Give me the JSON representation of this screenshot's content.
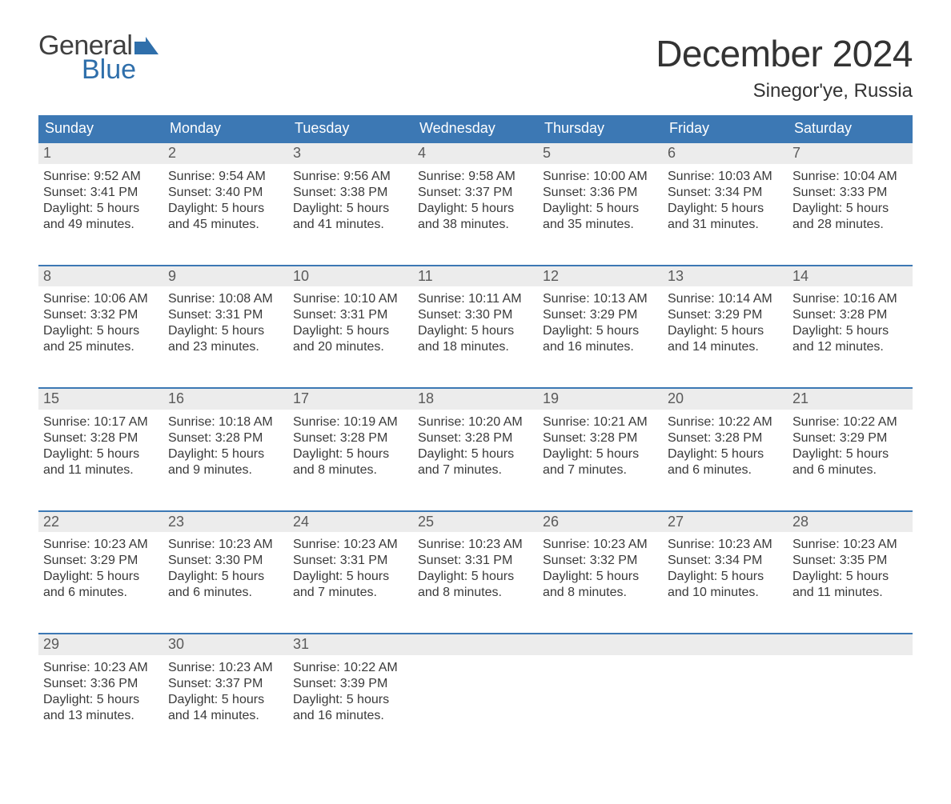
{
  "brand": {
    "line1": "General",
    "line2": "Blue",
    "flag_color": "#2f6fab"
  },
  "title": "December 2024",
  "location": "Sinegor'ye, Russia",
  "colors": {
    "header_bg": "#3c78b4",
    "header_text": "#ffffff",
    "daynum_bg": "#ececec",
    "row_border": "#3c78b4",
    "body_text": "#3a3a3a"
  },
  "columns": [
    "Sunday",
    "Monday",
    "Tuesday",
    "Wednesday",
    "Thursday",
    "Friday",
    "Saturday"
  ],
  "weeks": [
    [
      {
        "n": "1",
        "sr": "9:52 AM",
        "ss": "3:41 PM",
        "dl": "5 hours and 49 minutes."
      },
      {
        "n": "2",
        "sr": "9:54 AM",
        "ss": "3:40 PM",
        "dl": "5 hours and 45 minutes."
      },
      {
        "n": "3",
        "sr": "9:56 AM",
        "ss": "3:38 PM",
        "dl": "5 hours and 41 minutes."
      },
      {
        "n": "4",
        "sr": "9:58 AM",
        "ss": "3:37 PM",
        "dl": "5 hours and 38 minutes."
      },
      {
        "n": "5",
        "sr": "10:00 AM",
        "ss": "3:36 PM",
        "dl": "5 hours and 35 minutes."
      },
      {
        "n": "6",
        "sr": "10:03 AM",
        "ss": "3:34 PM",
        "dl": "5 hours and 31 minutes."
      },
      {
        "n": "7",
        "sr": "10:04 AM",
        "ss": "3:33 PM",
        "dl": "5 hours and 28 minutes."
      }
    ],
    [
      {
        "n": "8",
        "sr": "10:06 AM",
        "ss": "3:32 PM",
        "dl": "5 hours and 25 minutes."
      },
      {
        "n": "9",
        "sr": "10:08 AM",
        "ss": "3:31 PM",
        "dl": "5 hours and 23 minutes."
      },
      {
        "n": "10",
        "sr": "10:10 AM",
        "ss": "3:31 PM",
        "dl": "5 hours and 20 minutes."
      },
      {
        "n": "11",
        "sr": "10:11 AM",
        "ss": "3:30 PM",
        "dl": "5 hours and 18 minutes."
      },
      {
        "n": "12",
        "sr": "10:13 AM",
        "ss": "3:29 PM",
        "dl": "5 hours and 16 minutes."
      },
      {
        "n": "13",
        "sr": "10:14 AM",
        "ss": "3:29 PM",
        "dl": "5 hours and 14 minutes."
      },
      {
        "n": "14",
        "sr": "10:16 AM",
        "ss": "3:28 PM",
        "dl": "5 hours and 12 minutes."
      }
    ],
    [
      {
        "n": "15",
        "sr": "10:17 AM",
        "ss": "3:28 PM",
        "dl": "5 hours and 11 minutes."
      },
      {
        "n": "16",
        "sr": "10:18 AM",
        "ss": "3:28 PM",
        "dl": "5 hours and 9 minutes."
      },
      {
        "n": "17",
        "sr": "10:19 AM",
        "ss": "3:28 PM",
        "dl": "5 hours and 8 minutes."
      },
      {
        "n": "18",
        "sr": "10:20 AM",
        "ss": "3:28 PM",
        "dl": "5 hours and 7 minutes."
      },
      {
        "n": "19",
        "sr": "10:21 AM",
        "ss": "3:28 PM",
        "dl": "5 hours and 7 minutes."
      },
      {
        "n": "20",
        "sr": "10:22 AM",
        "ss": "3:28 PM",
        "dl": "5 hours and 6 minutes."
      },
      {
        "n": "21",
        "sr": "10:22 AM",
        "ss": "3:29 PM",
        "dl": "5 hours and 6 minutes."
      }
    ],
    [
      {
        "n": "22",
        "sr": "10:23 AM",
        "ss": "3:29 PM",
        "dl": "5 hours and 6 minutes."
      },
      {
        "n": "23",
        "sr": "10:23 AM",
        "ss": "3:30 PM",
        "dl": "5 hours and 6 minutes."
      },
      {
        "n": "24",
        "sr": "10:23 AM",
        "ss": "3:31 PM",
        "dl": "5 hours and 7 minutes."
      },
      {
        "n": "25",
        "sr": "10:23 AM",
        "ss": "3:31 PM",
        "dl": "5 hours and 8 minutes."
      },
      {
        "n": "26",
        "sr": "10:23 AM",
        "ss": "3:32 PM",
        "dl": "5 hours and 8 minutes."
      },
      {
        "n": "27",
        "sr": "10:23 AM",
        "ss": "3:34 PM",
        "dl": "5 hours and 10 minutes."
      },
      {
        "n": "28",
        "sr": "10:23 AM",
        "ss": "3:35 PM",
        "dl": "5 hours and 11 minutes."
      }
    ],
    [
      {
        "n": "29",
        "sr": "10:23 AM",
        "ss": "3:36 PM",
        "dl": "5 hours and 13 minutes."
      },
      {
        "n": "30",
        "sr": "10:23 AM",
        "ss": "3:37 PM",
        "dl": "5 hours and 14 minutes."
      },
      {
        "n": "31",
        "sr": "10:22 AM",
        "ss": "3:39 PM",
        "dl": "5 hours and 16 minutes."
      },
      null,
      null,
      null,
      null
    ]
  ],
  "labels": {
    "sunrise": "Sunrise:",
    "sunset": "Sunset:",
    "daylight": "Daylight:"
  }
}
